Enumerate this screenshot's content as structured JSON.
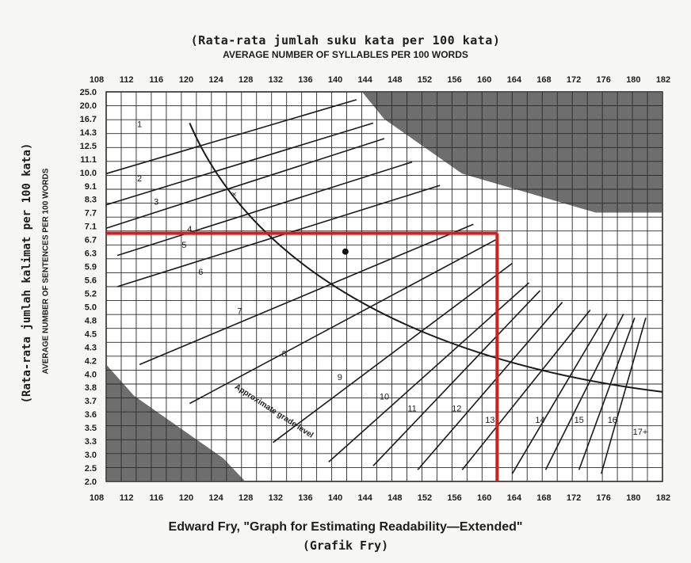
{
  "title_id": "(Rata-rata jumlah suku kata per 100 kata)",
  "title_en": "AVERAGE NUMBER OF SYLLABLES PER 100 WORDS",
  "ylabel_id": "(Rata-rata jumlah kalimat per 100 kata)",
  "ylabel_en": "AVERAGE NUMBER OF SENTENCES PER 100 WORDS",
  "caption": "Edward Fry, \"Graph for Estimating Readability—Extended\"",
  "caption2": "(Grafik Fry)",
  "chart_data": {
    "type": "line",
    "x_ticks": [
      "108",
      "112",
      "116",
      "120",
      "124",
      "128",
      "132",
      "136",
      "140",
      "144",
      "148",
      "152",
      "156",
      "160",
      "164",
      "168",
      "172",
      "176",
      "180",
      "182"
    ],
    "y_ticks": [
      "25.0",
      "20.0",
      "16.7",
      "14.3",
      "12.5",
      "11.1",
      "10.0",
      "9.1",
      "8.3",
      "7.7",
      "7.1",
      "6.7",
      "6.3",
      "5.9",
      "5.6",
      "5.2",
      "5.0",
      "4.8",
      "4.5",
      "4.3",
      "4.2",
      "4.0",
      "3.8",
      "3.7",
      "3.6",
      "3.5",
      "3.3",
      "3.0",
      "2.5",
      "2.0"
    ],
    "xlim": [
      108,
      182
    ],
    "ylim": [
      "2.0",
      "25.0"
    ],
    "grade_levels": [
      "1",
      "2",
      "3",
      "4",
      "5",
      "6",
      "7",
      "8",
      "9",
      "10",
      "11",
      "12",
      "13",
      "14",
      "15",
      "16",
      "17+"
    ],
    "rotated_label": "Approximate grade level",
    "marked_point": {
      "x": 160,
      "y": "6.7"
    },
    "highlight_color": "#d81b1b",
    "shaded_color": "#555555",
    "grid": true
  }
}
